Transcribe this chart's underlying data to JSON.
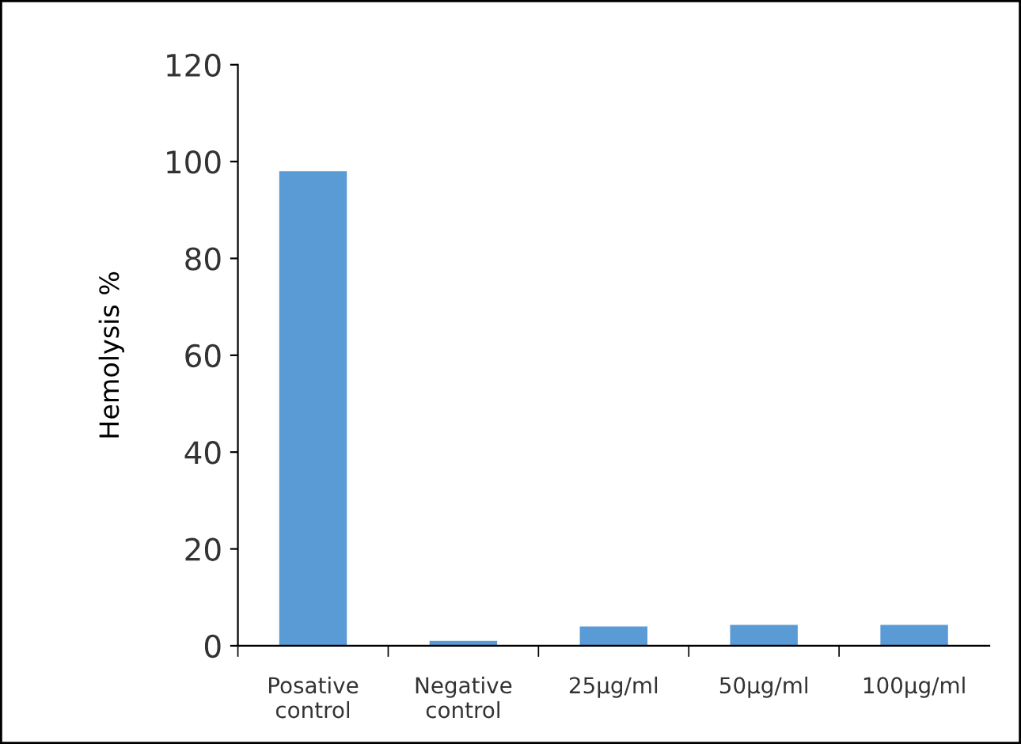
{
  "chart_data": {
    "type": "bar",
    "ylabel": "Hemolysis %",
    "categories": [
      "Posative\ncontrol",
      "Negative\ncontrol",
      "25µg/ml",
      "50µg/ml",
      "100µg/ml"
    ],
    "values": [
      98,
      1,
      4,
      4.3,
      4.3
    ],
    "color": "#5b9bd5",
    "ylim": [
      0,
      120
    ],
    "yticks": [
      0,
      20,
      40,
      60,
      80,
      100,
      120
    ],
    "grid": false,
    "legend": false
  }
}
